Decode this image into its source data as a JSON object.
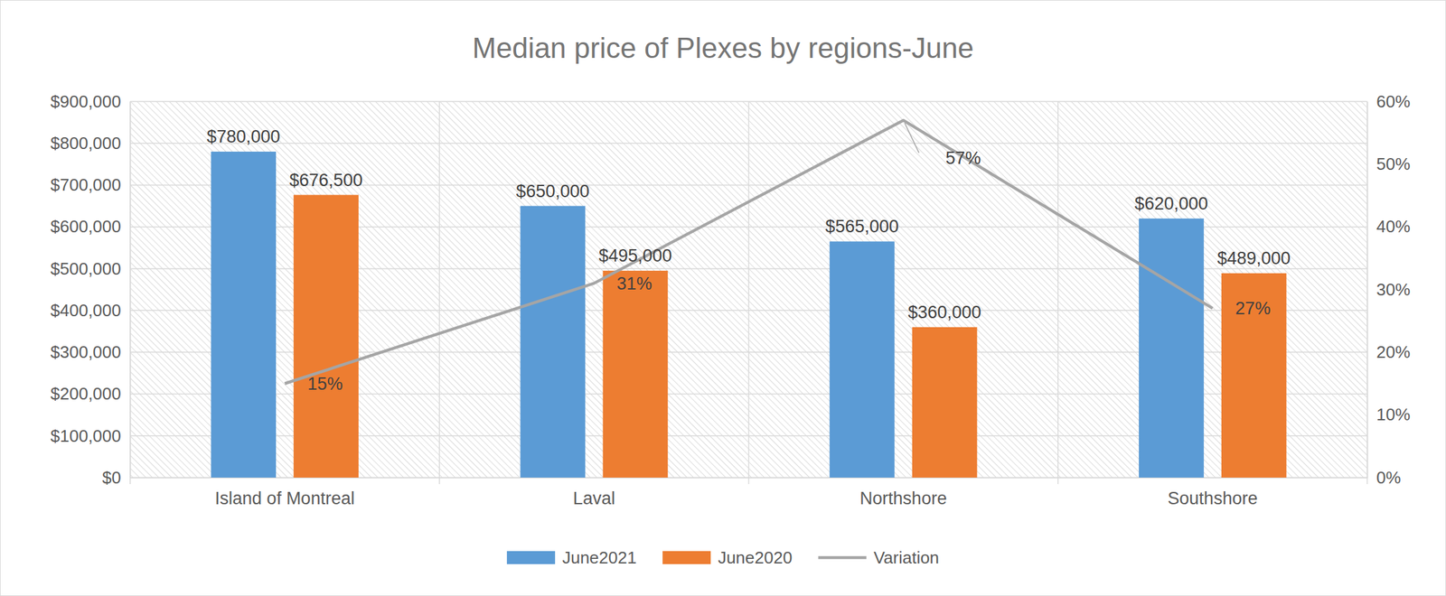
{
  "chart_data": {
    "type": "bar",
    "title": "Median price of Plexes by regions-June",
    "categories": [
      "Island of Montreal",
      "Laval",
      "Northshore",
      "Southshore"
    ],
    "series": [
      {
        "name": "June2021",
        "color": "#5B9BD5",
        "values": [
          780000,
          650000,
          565000,
          620000
        ],
        "value_labels": [
          "$780,000",
          "$650,000",
          "$565,000",
          "$620,000"
        ]
      },
      {
        "name": "June2020",
        "color": "#ED7D31",
        "values": [
          676500,
          495000,
          360000,
          489000
        ],
        "value_labels": [
          "$676,500",
          "$495,000",
          "$360,000",
          "$489,000"
        ]
      },
      {
        "name": "Variation",
        "type": "line",
        "axis": "y2",
        "color": "#A5A5A5",
        "values": [
          15,
          31,
          57,
          27
        ],
        "value_labels": [
          "15%",
          "31%",
          "57%",
          "27%"
        ]
      }
    ],
    "ylim": [
      0,
      900000
    ],
    "yticks": [
      {
        "value": 0,
        "label": "$0"
      },
      {
        "value": 100000,
        "label": "$100,000"
      },
      {
        "value": 200000,
        "label": "$200,000"
      },
      {
        "value": 300000,
        "label": "$300,000"
      },
      {
        "value": 400000,
        "label": "$400,000"
      },
      {
        "value": 500000,
        "label": "$500,000"
      },
      {
        "value": 600000,
        "label": "$600,000"
      },
      {
        "value": 700000,
        "label": "$700,000"
      },
      {
        "value": 800000,
        "label": "$800,000"
      },
      {
        "value": 900000,
        "label": "$900,000"
      }
    ],
    "y2lim": [
      0,
      60
    ],
    "y2ticks": [
      {
        "value": 0,
        "label": "0%"
      },
      {
        "value": 10,
        "label": "10%"
      },
      {
        "value": 20,
        "label": "20%"
      },
      {
        "value": 30,
        "label": "30%"
      },
      {
        "value": 40,
        "label": "40%"
      },
      {
        "value": 50,
        "label": "50%"
      },
      {
        "value": 60,
        "label": "60%"
      }
    ],
    "grid": true,
    "legend": "bottom",
    "data_labels": true
  }
}
